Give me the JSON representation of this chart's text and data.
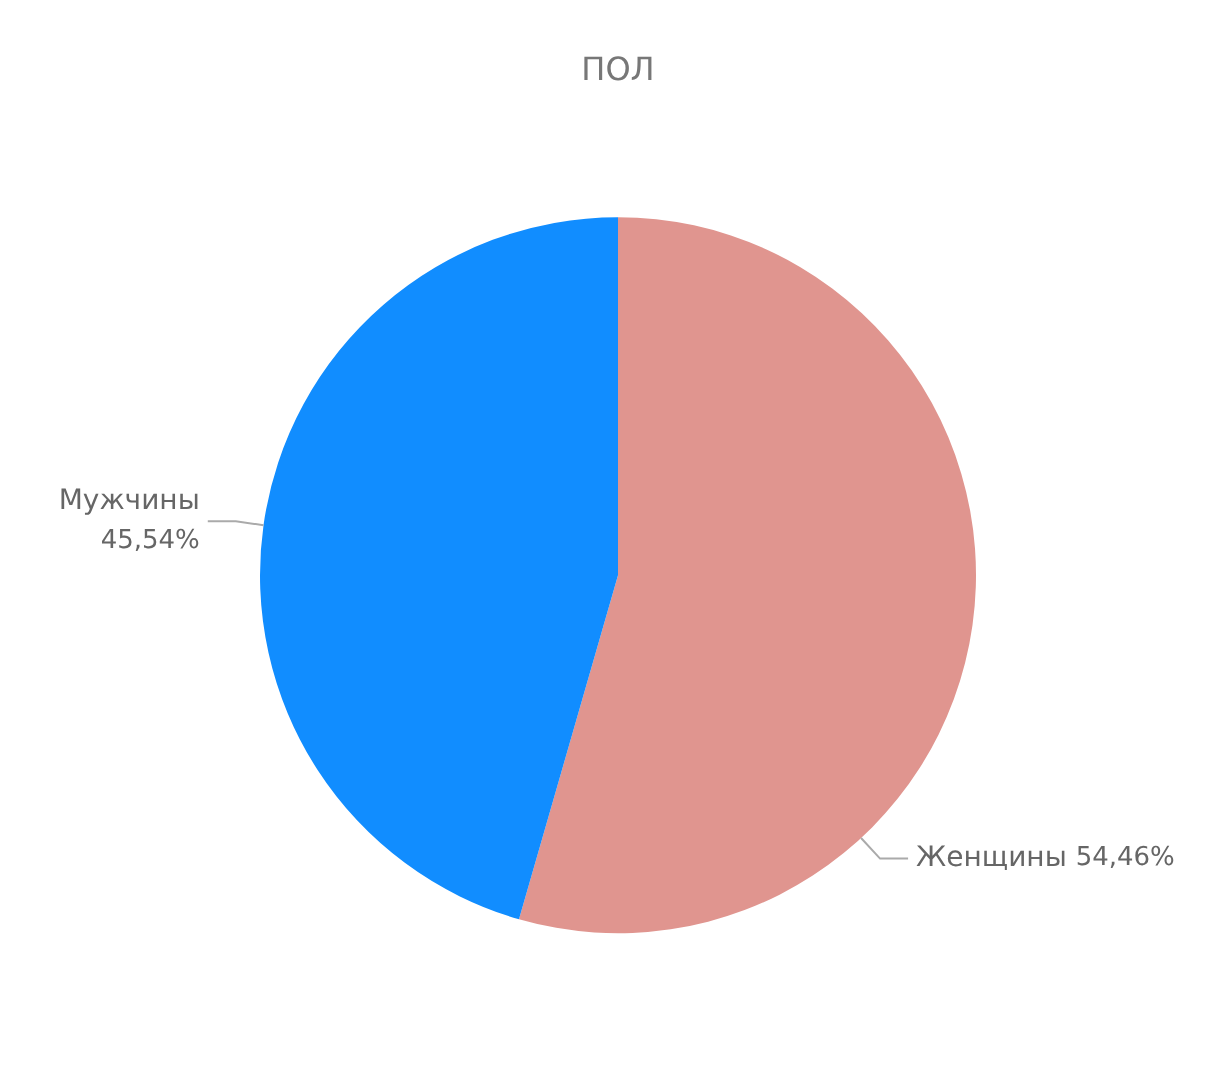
{
  "chart_data": {
    "type": "pie",
    "title": "ПОЛ",
    "categories": [
      "Женщины",
      "Мужчины"
    ],
    "values": [
      54.46,
      45.54
    ],
    "colors": [
      "#e0958f",
      "#118dff"
    ],
    "value_labels": [
      "54,46%",
      "45,54%"
    ],
    "legend": false
  }
}
